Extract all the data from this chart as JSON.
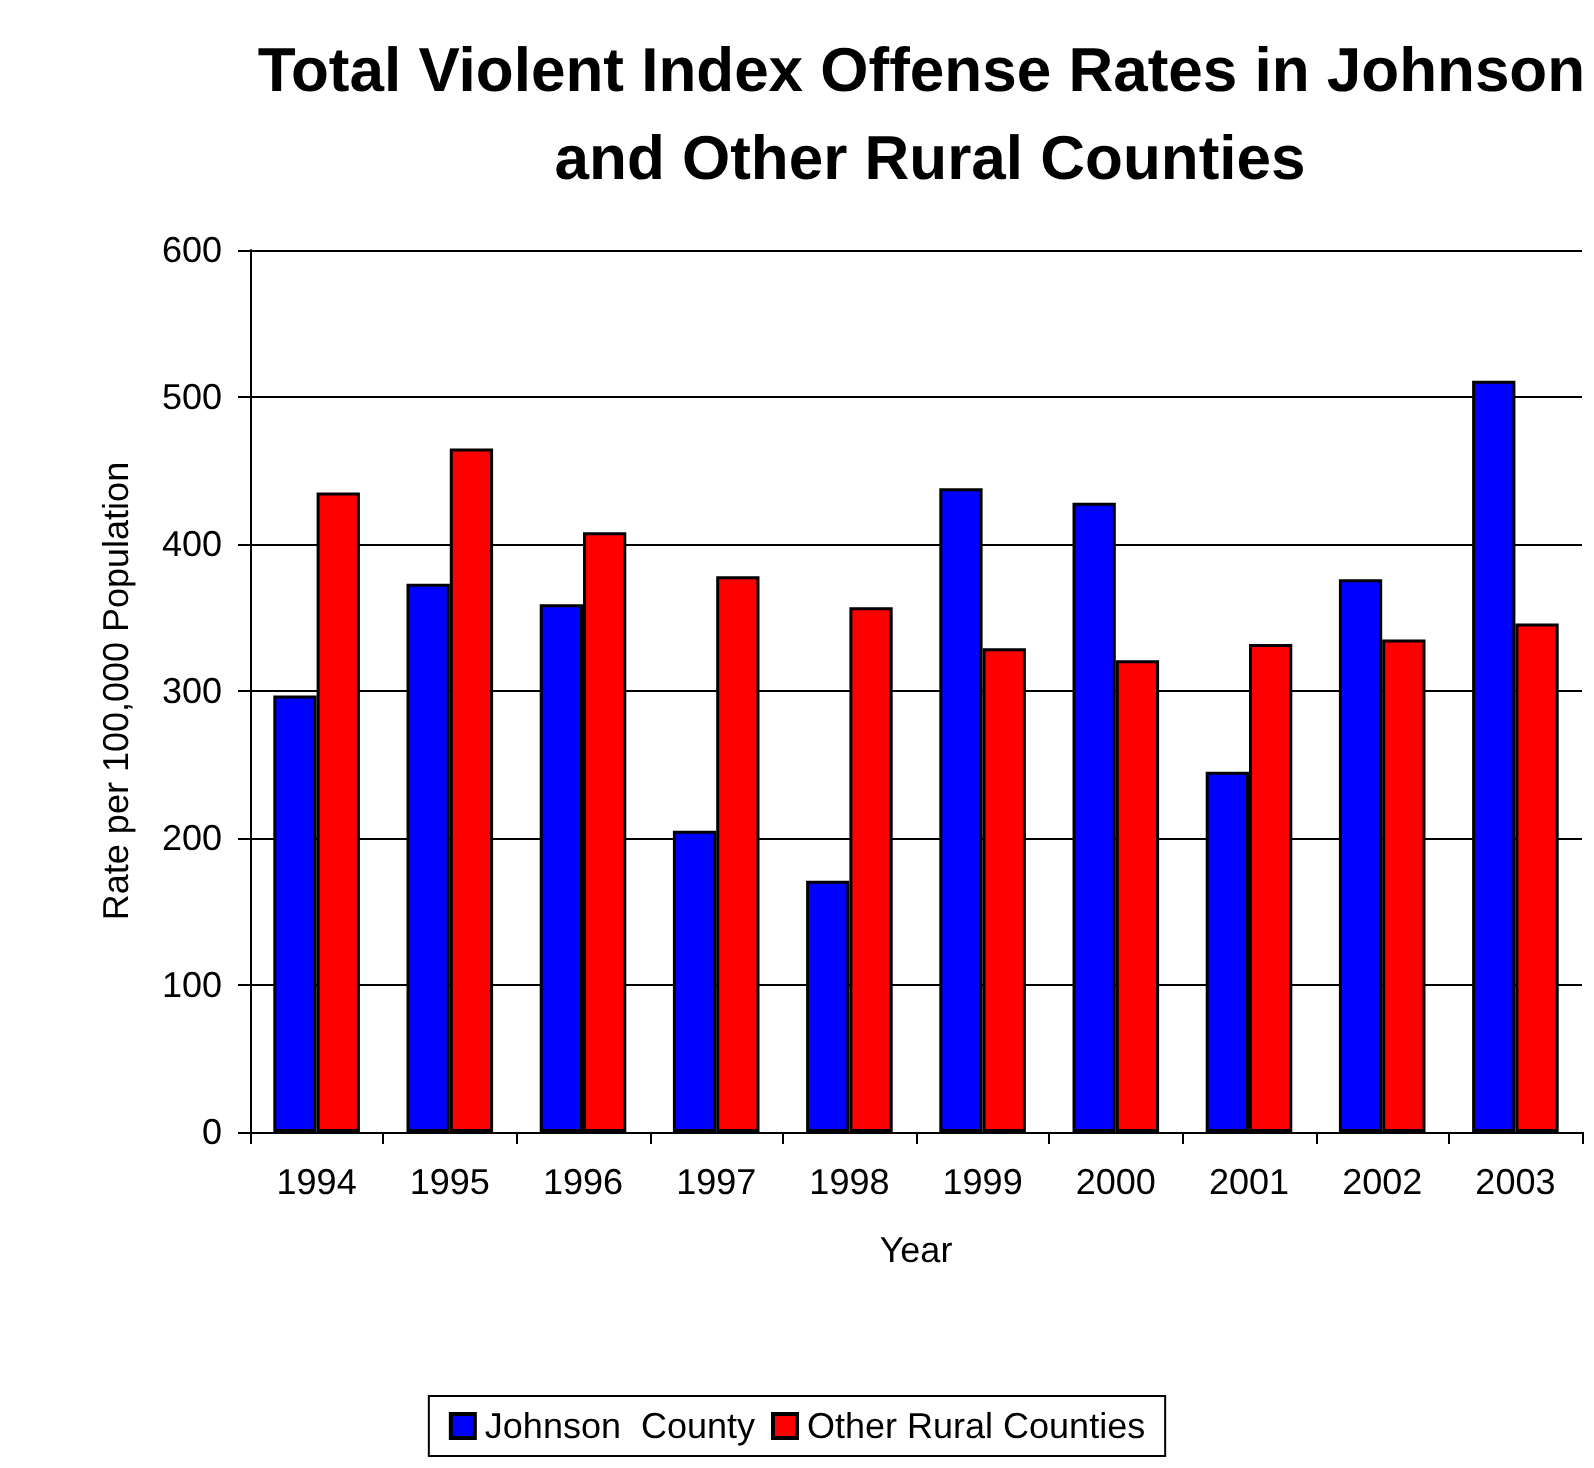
{
  "chart_data": {
    "type": "bar",
    "title": "Total Violent Index Offense Rates in Johnson and Other Rural Counties",
    "xlabel": "Year",
    "ylabel": "Rate per 100,000 Population",
    "categories": [
      "1994",
      "1995",
      "1996",
      "1997",
      "1998",
      "1999",
      "2000",
      "2001",
      "2002",
      "2003"
    ],
    "series": [
      {
        "name": "Johnson  County",
        "color": "#0000ff",
        "values": [
          297,
          373,
          359,
          205,
          171,
          438,
          428,
          245,
          376,
          511
        ]
      },
      {
        "name": "Other Rural Counties",
        "color": "#ff0000",
        "values": [
          435,
          465,
          408,
          378,
          357,
          329,
          321,
          332,
          335,
          346
        ]
      }
    ],
    "ylim": [
      0,
      600
    ],
    "yticks": [
      0,
      100,
      200,
      300,
      400,
      500,
      600
    ],
    "grid": "y",
    "legend": "bottom"
  }
}
